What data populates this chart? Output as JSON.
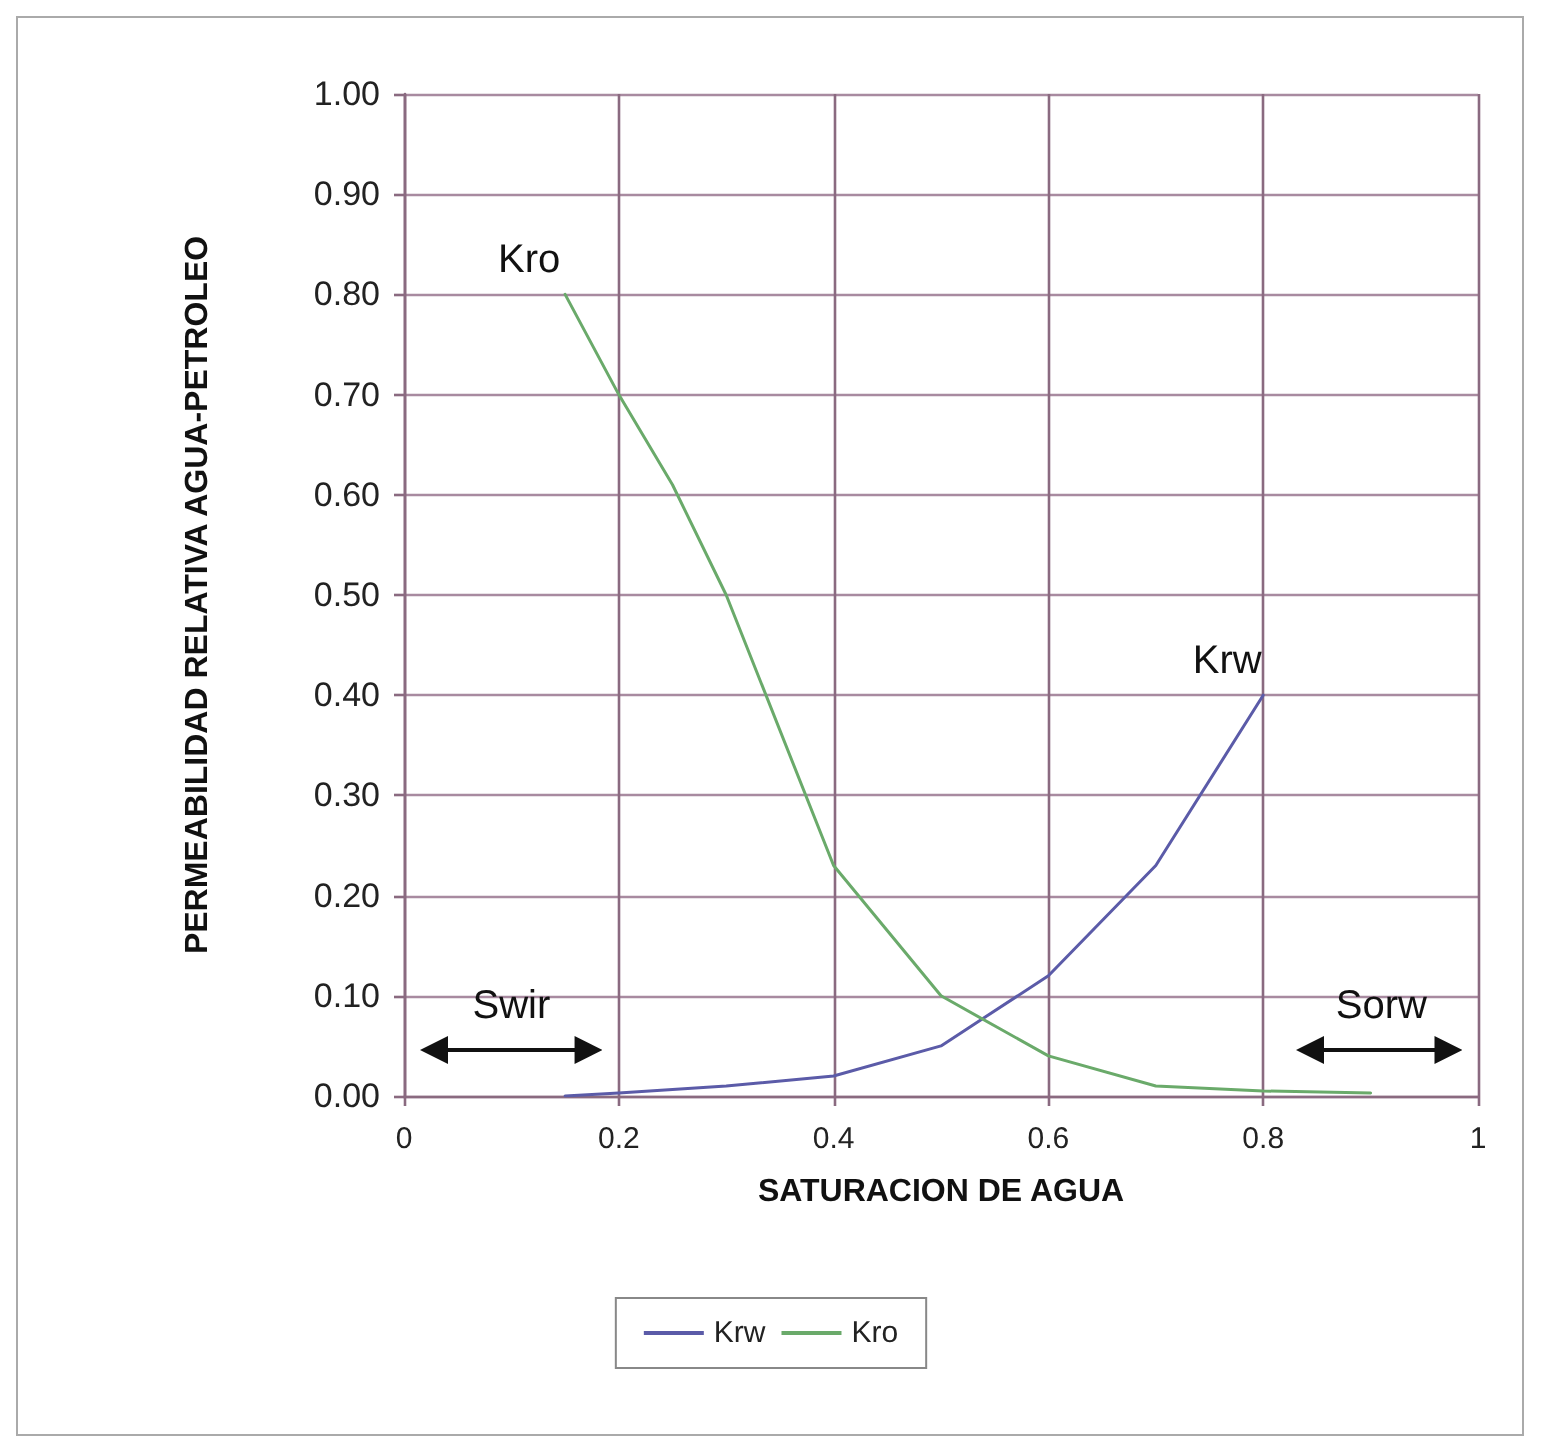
{
  "chart_data": {
    "type": "line",
    "xlabel": "SATURACION DE AGUA",
    "ylabel": "PERMEABILIDAD RELATIVA AGUA-PETROLEO",
    "series": [
      {
        "name": "Krw",
        "color": "#5b5ba8",
        "x": [
          0.15,
          0.2,
          0.3,
          0.4,
          0.5,
          0.6,
          0.7,
          0.8
        ],
        "values": [
          0.0,
          0.003,
          0.01,
          0.02,
          0.05,
          0.12,
          0.23,
          0.4
        ]
      },
      {
        "name": "Kro",
        "color": "#6aaa6a",
        "x": [
          0.15,
          0.2,
          0.25,
          0.3,
          0.4,
          0.5,
          0.6,
          0.7,
          0.8,
          0.9
        ],
        "values": [
          0.8,
          0.7,
          0.61,
          0.5,
          0.23,
          0.1,
          0.04,
          0.01,
          0.005,
          0.003
        ]
      }
    ],
    "annotations": [
      "Swir",
      "Sorw"
    ],
    "xlim": [
      0,
      1
    ],
    "xticks": [
      0,
      0.2,
      0.4,
      0.6,
      0.8,
      1
    ],
    "ylim": [
      0,
      1
    ],
    "yticks": [
      {
        "value": 0,
        "label": "0.00"
      },
      {
        "value": 0.1,
        "label": "0.10"
      },
      {
        "value": 0.2,
        "label": "0.20"
      },
      {
        "value": 0.3,
        "label": "0.30"
      },
      {
        "value": 0.4,
        "label": "0.40"
      },
      {
        "value": 0.5,
        "label": "0.50"
      },
      {
        "value": 0.6,
        "label": "0.60"
      },
      {
        "value": 0.7,
        "label": "0.70"
      },
      {
        "value": 0.8,
        "label": "0.80"
      },
      {
        "value": 0.9,
        "label": "0.90"
      },
      {
        "value": 1,
        "label": "1.00"
      }
    ],
    "grid": true,
    "legend": "bottom",
    "marker": "none",
    "line_style": "solid"
  }
}
